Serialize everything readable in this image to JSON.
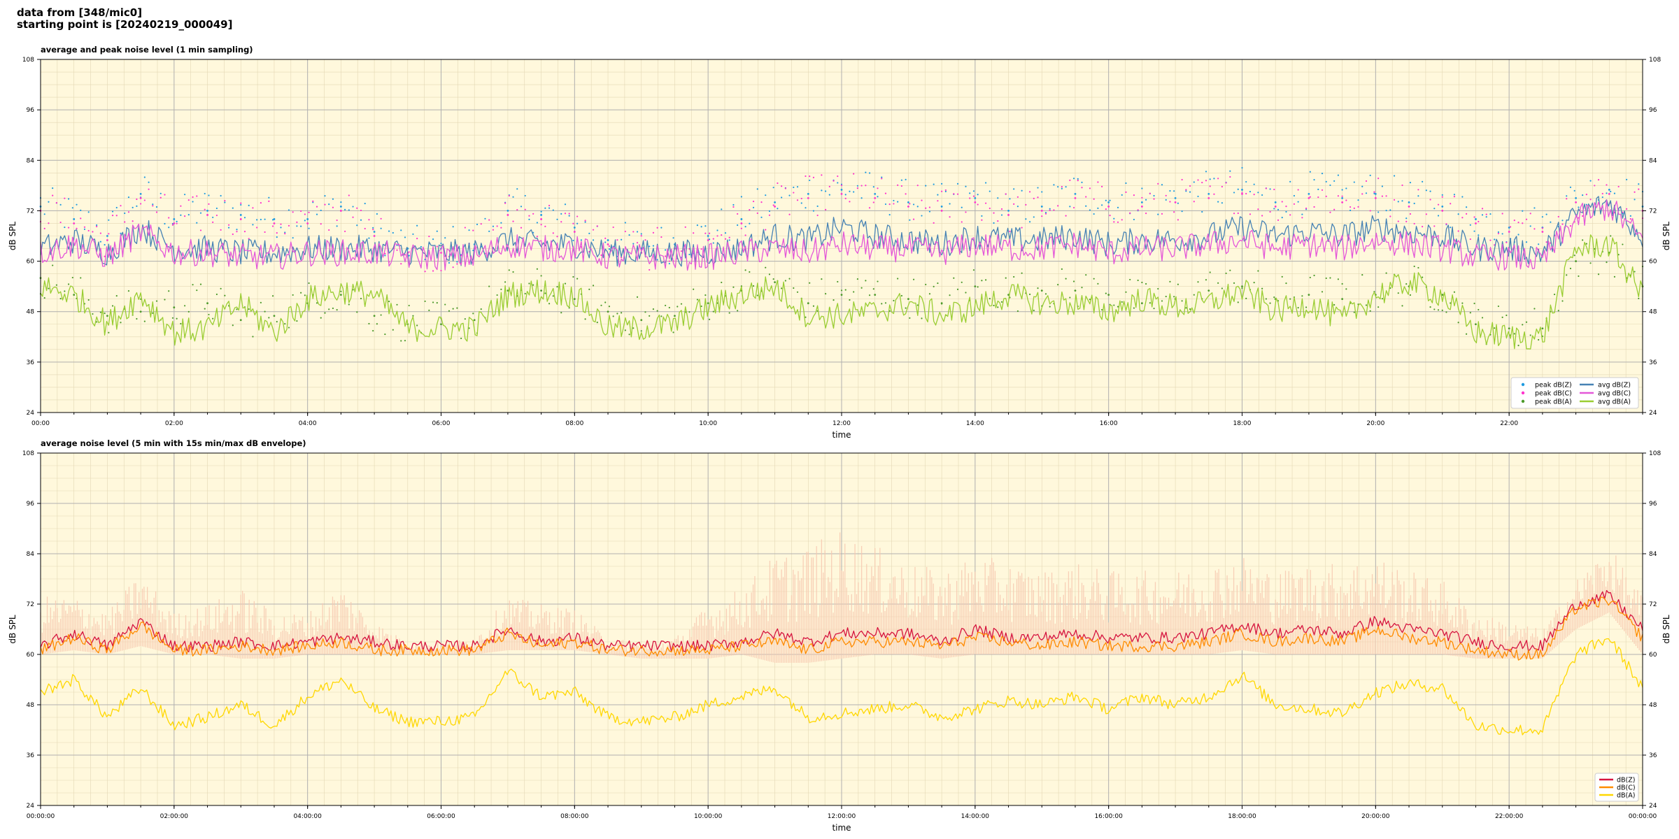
{
  "header": {
    "line1": "data from [348/mic0]",
    "line2": "starting point is [20240219_000049]"
  },
  "chart_data": [
    {
      "type": "line",
      "title": "average and peak noise level (1 min sampling)",
      "xlabel": "time",
      "ylabel": "dB SPL",
      "ylim": [
        24,
        108
      ],
      "xlim_hours": [
        0,
        24
      ],
      "yticks": [
        24,
        36,
        48,
        60,
        72,
        84,
        96,
        108
      ],
      "xtick_labels": [
        "00:00",
        "02:00",
        "04:00",
        "06:00",
        "08:00",
        "10:00",
        "12:00",
        "14:00",
        "16:00",
        "18:00",
        "20:00",
        "22:00"
      ],
      "grid": true,
      "legend_position": "lower-right",
      "legend_columns": 2,
      "x_hours": [
        0,
        0.5,
        1,
        1.5,
        2,
        2.5,
        3,
        3.5,
        4,
        4.5,
        5,
        5.5,
        6,
        6.5,
        7,
        7.5,
        8,
        8.5,
        9,
        9.5,
        10,
        10.5,
        11,
        11.5,
        12,
        12.5,
        13,
        13.5,
        14,
        14.5,
        15,
        15.5,
        16,
        16.5,
        17,
        17.5,
        18,
        18.5,
        19,
        19.5,
        20,
        20.5,
        21,
        21.5,
        22,
        22.5,
        23,
        23.5,
        24
      ],
      "series": [
        {
          "name": "peak dB(Z)",
          "kind": "scatter",
          "color": "#1f9be0",
          "values": [
            73,
            70,
            66,
            76,
            70,
            72,
            71,
            70,
            70,
            73,
            67,
            63,
            63,
            64,
            72,
            71,
            68,
            65,
            63,
            64,
            66,
            70,
            74,
            76,
            77,
            76,
            74,
            73,
            75,
            72,
            73,
            76,
            74,
            74,
            75,
            76,
            77,
            74,
            76,
            75,
            76,
            74,
            73,
            70,
            68,
            68,
            75,
            77,
            73
          ]
        },
        {
          "name": "peak dB(C)",
          "kind": "scatter",
          "color": "#ff33cc",
          "values": [
            72,
            69,
            65,
            75,
            69,
            71,
            70,
            69,
            69,
            72,
            66,
            62,
            62,
            63,
            71,
            70,
            67,
            64,
            62,
            63,
            65,
            69,
            73,
            75,
            76,
            75,
            73,
            72,
            74,
            71,
            72,
            75,
            73,
            73,
            74,
            75,
            76,
            73,
            75,
            74,
            75,
            73,
            72,
            69,
            67,
            67,
            74,
            76,
            72
          ]
        },
        {
          "name": "peak dB(A)",
          "kind": "scatter",
          "color": "#4d9a2b",
          "values": [
            56,
            52,
            47,
            48,
            49,
            50,
            46,
            47,
            50,
            52,
            47,
            45,
            45,
            46,
            53,
            53,
            51,
            48,
            46,
            47,
            50,
            53,
            55,
            50,
            52,
            52,
            51,
            50,
            54,
            52,
            53,
            53,
            52,
            50,
            51,
            53,
            54,
            51,
            52,
            51,
            52,
            54,
            52,
            45,
            44,
            44,
            60,
            62,
            54
          ]
        },
        {
          "name": "avg dB(Z)",
          "kind": "line",
          "color": "#4682b4",
          "values": [
            63,
            65,
            62,
            68,
            63,
            63,
            62,
            62,
            63,
            63,
            63,
            62,
            62,
            62,
            65,
            64,
            64,
            62,
            62,
            62,
            62,
            63,
            66,
            65,
            68,
            66,
            65,
            64,
            66,
            65,
            65,
            66,
            64,
            65,
            65,
            66,
            68,
            66,
            67,
            66,
            68,
            67,
            66,
            63,
            63,
            62,
            71,
            74,
            66
          ]
        },
        {
          "name": "avg dB(C)",
          "kind": "line",
          "color": "#e457d8",
          "values": [
            62,
            64,
            61,
            67,
            62,
            62,
            61,
            61,
            62,
            62,
            62,
            61,
            61,
            61,
            64,
            63,
            63,
            61,
            61,
            61,
            61,
            62,
            63,
            62,
            64,
            63,
            63,
            62,
            64,
            63,
            63,
            64,
            62,
            63,
            63,
            64,
            65,
            63,
            64,
            63,
            65,
            64,
            63,
            61,
            61,
            60,
            70,
            73,
            65
          ]
        },
        {
          "name": "avg dB(A)",
          "kind": "line",
          "color": "#9acd32",
          "values": [
            54,
            52,
            45,
            52,
            43,
            44,
            50,
            43,
            51,
            53,
            52,
            44,
            44,
            44,
            52,
            53,
            52,
            44,
            44,
            45,
            49,
            52,
            54,
            47,
            47,
            48,
            50,
            47,
            49,
            52,
            50,
            50,
            48,
            51,
            49,
            50,
            53,
            48,
            50,
            46,
            52,
            55,
            52,
            43,
            42,
            42,
            63,
            64,
            52
          ]
        }
      ]
    },
    {
      "type": "line",
      "title": "average noise level (5 min with 15s min/max dB envelope)",
      "xlabel": "time",
      "ylabel": "dB SPL",
      "ylim": [
        24,
        108
      ],
      "xlim_hours": [
        0,
        24
      ],
      "yticks": [
        24,
        36,
        48,
        60,
        72,
        84,
        96,
        108
      ],
      "xtick_labels": [
        "00:00:00",
        "02:00:00",
        "04:00:00",
        "06:00:00",
        "08:00:00",
        "10:00:00",
        "12:00:00",
        "14:00:00",
        "16:00:00",
        "18:00:00",
        "20:00:00",
        "22:00:00",
        "00:00:00"
      ],
      "grid": true,
      "legend_position": "lower-right",
      "x_hours": [
        0,
        0.5,
        1,
        1.5,
        2,
        2.5,
        3,
        3.5,
        4,
        4.5,
        5,
        5.5,
        6,
        6.5,
        7,
        7.5,
        8,
        8.5,
        9,
        9.5,
        10,
        10.5,
        11,
        11.5,
        12,
        12.5,
        13,
        13.5,
        14,
        14.5,
        15,
        15.5,
        16,
        16.5,
        17,
        17.5,
        18,
        18.5,
        19,
        19.5,
        20,
        20.5,
        21,
        21.5,
        22,
        22.5,
        23,
        23.5,
        24
      ],
      "envelope": {
        "color": "#f7c9b0",
        "upper": [
          74,
          74,
          70,
          80,
          70,
          72,
          76,
          70,
          70,
          77,
          68,
          63,
          63,
          64,
          74,
          72,
          71,
          64,
          63,
          64,
          72,
          76,
          84,
          86,
          90,
          86,
          82,
          80,
          84,
          82,
          80,
          82,
          80,
          80,
          80,
          82,
          84,
          80,
          82,
          82,
          84,
          80,
          78,
          70,
          68,
          66,
          78,
          86,
          74
        ],
        "lower": [
          60,
          61,
          60,
          62,
          60,
          60,
          59,
          59,
          60,
          60,
          60,
          60,
          60,
          60,
          61,
          61,
          61,
          60,
          59,
          59,
          59,
          60,
          58,
          58,
          59,
          60,
          60,
          59,
          60,
          60,
          60,
          60,
          60,
          60,
          60,
          60,
          61,
          60,
          60,
          60,
          60,
          60,
          60,
          59,
          59,
          59,
          66,
          70,
          60
        ]
      },
      "series": [
        {
          "name": "dB(Z)",
          "kind": "line",
          "color": "#d6143f",
          "values": [
            62,
            65,
            62,
            68,
            62,
            62,
            63,
            62,
            63,
            64,
            63,
            62,
            62,
            62,
            66,
            63,
            64,
            62,
            62,
            62,
            62,
            63,
            65,
            63,
            65,
            65,
            65,
            63,
            66,
            64,
            64,
            65,
            64,
            64,
            64,
            65,
            67,
            65,
            66,
            65,
            68,
            66,
            65,
            63,
            62,
            62,
            72,
            74,
            66
          ]
        },
        {
          "name": "dB(C)",
          "kind": "line",
          "color": "#ff8c00",
          "values": [
            61,
            64,
            61,
            67,
            61,
            61,
            62,
            61,
            62,
            63,
            61,
            61,
            61,
            61,
            65,
            62,
            63,
            61,
            61,
            61,
            61,
            62,
            63,
            61,
            63,
            63,
            63,
            62,
            64,
            63,
            62,
            63,
            62,
            62,
            62,
            63,
            65,
            63,
            64,
            63,
            66,
            64,
            63,
            61,
            60,
            60,
            71,
            73,
            64
          ]
        },
        {
          "name": "dB(A)",
          "kind": "line",
          "color": "#ffd700",
          "values": [
            51,
            54,
            45,
            52,
            43,
            45,
            48,
            43,
            50,
            54,
            47,
            44,
            44,
            45,
            56,
            50,
            51,
            45,
            44,
            45,
            48,
            50,
            52,
            45,
            46,
            47,
            48,
            45,
            47,
            49,
            48,
            50,
            47,
            50,
            48,
            50,
            55,
            48,
            47,
            46,
            51,
            53,
            52,
            43,
            42,
            42,
            60,
            64,
            52
          ]
        }
      ]
    }
  ]
}
